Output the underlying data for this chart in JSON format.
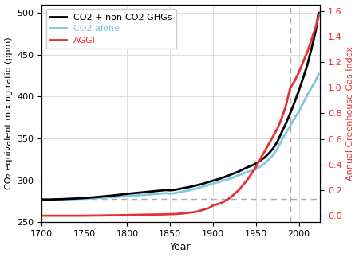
{
  "xlabel": "Year",
  "ylabel_left": "CO₂ equivalent mixing ratio (ppm)",
  "ylabel_right": "Annual Greenhouse Gas Index",
  "xlim": [
    1700,
    2025
  ],
  "ylim_left": [
    250,
    510
  ],
  "ylim_right": [
    -0.05,
    1.65
  ],
  "yticks_left": [
    250,
    300,
    350,
    400,
    450,
    500
  ],
  "yticks_right": [
    0.0,
    0.2,
    0.4,
    0.6,
    0.8,
    1.0,
    1.2,
    1.4,
    1.6
  ],
  "xticks": [
    1700,
    1750,
    1800,
    1850,
    1900,
    1950,
    2000
  ],
  "dashed_hline_y": 278,
  "dashed_vline_x": 1990,
  "dashed_color": "#aaaaaa",
  "background_color": "#ffffff",
  "grid_color": "#d8d8d8",
  "legend_labels": [
    "CO2 + non-CO2 GHGs",
    "CO2 alone",
    "AGGI"
  ],
  "legend_colors": [
    "#000000",
    "#7ec8e3",
    "#e83030"
  ],
  "co2_total_years": [
    1700,
    1705,
    1710,
    1715,
    1720,
    1725,
    1730,
    1735,
    1740,
    1745,
    1750,
    1755,
    1760,
    1765,
    1770,
    1775,
    1780,
    1785,
    1790,
    1795,
    1800,
    1805,
    1810,
    1815,
    1820,
    1825,
    1830,
    1835,
    1840,
    1845,
    1850,
    1855,
    1860,
    1865,
    1870,
    1875,
    1880,
    1885,
    1890,
    1895,
    1900,
    1905,
    1910,
    1915,
    1920,
    1925,
    1930,
    1935,
    1940,
    1945,
    1950,
    1955,
    1960,
    1965,
    1970,
    1975,
    1980,
    1985,
    1990,
    1995,
    2000,
    2005,
    2010,
    2015,
    2020,
    2023
  ],
  "co2_total_values": [
    277.0,
    277.0,
    277.0,
    277.2,
    277.3,
    277.5,
    277.8,
    278.0,
    278.2,
    278.5,
    278.8,
    279.2,
    279.6,
    280.0,
    280.5,
    281.0,
    281.5,
    282.0,
    282.5,
    283.2,
    283.8,
    284.3,
    284.8,
    285.3,
    285.8,
    286.3,
    286.8,
    287.3,
    287.8,
    288.3,
    288.0,
    288.5,
    289.5,
    290.5,
    291.5,
    292.5,
    293.8,
    295.0,
    296.5,
    298.0,
    299.5,
    301.0,
    302.5,
    304.5,
    306.5,
    308.5,
    310.5,
    313.0,
    315.5,
    317.5,
    320.0,
    323.5,
    327.0,
    332.0,
    338.0,
    346.0,
    357.0,
    368.0,
    380.0,
    393.0,
    407.0,
    422.0,
    438.0,
    458.0,
    480.0,
    500.0
  ],
  "co2_alone_years": [
    1700,
    1705,
    1710,
    1715,
    1720,
    1725,
    1730,
    1735,
    1740,
    1745,
    1750,
    1755,
    1760,
    1765,
    1770,
    1775,
    1780,
    1785,
    1790,
    1795,
    1800,
    1805,
    1810,
    1815,
    1820,
    1825,
    1830,
    1835,
    1840,
    1845,
    1850,
    1855,
    1860,
    1865,
    1870,
    1875,
    1880,
    1885,
    1890,
    1895,
    1900,
    1905,
    1910,
    1915,
    1920,
    1925,
    1930,
    1935,
    1940,
    1945,
    1950,
    1955,
    1960,
    1965,
    1970,
    1975,
    1980,
    1985,
    1990,
    1995,
    2000,
    2005,
    2010,
    2015,
    2020,
    2023
  ],
  "co2_alone_values": [
    276.5,
    276.5,
    276.5,
    276.7,
    276.8,
    277.0,
    277.2,
    277.4,
    277.6,
    277.8,
    278.0,
    278.2,
    278.5,
    278.8,
    279.1,
    279.4,
    279.7,
    280.0,
    280.3,
    280.7,
    281.0,
    281.4,
    281.8,
    282.2,
    282.6,
    283.0,
    283.4,
    283.8,
    284.2,
    284.6,
    284.0,
    284.5,
    285.5,
    286.5,
    287.5,
    288.5,
    290.0,
    291.5,
    293.0,
    294.5,
    296.0,
    297.5,
    299.0,
    300.5,
    302.0,
    304.0,
    306.0,
    308.0,
    310.0,
    311.5,
    313.0,
    316.5,
    320.0,
    325.0,
    330.0,
    338.0,
    347.5,
    356.5,
    365.0,
    374.0,
    382.0,
    392.0,
    402.0,
    411.0,
    420.0,
    427.0
  ],
  "aggi_years": [
    1700,
    1750,
    1800,
    1820,
    1840,
    1850,
    1860,
    1870,
    1880,
    1885,
    1890,
    1895,
    1900,
    1905,
    1910,
    1915,
    1920,
    1925,
    1930,
    1935,
    1940,
    1945,
    1950,
    1955,
    1960,
    1965,
    1970,
    1975,
    1980,
    1985,
    1990,
    1995,
    2000,
    2005,
    2010,
    2015,
    2020,
    2023
  ],
  "aggi_values": [
    0.0,
    0.0,
    0.005,
    0.008,
    0.01,
    0.012,
    0.015,
    0.022,
    0.03,
    0.04,
    0.05,
    0.06,
    0.08,
    0.09,
    0.1,
    0.12,
    0.14,
    0.17,
    0.2,
    0.24,
    0.28,
    0.33,
    0.38,
    0.44,
    0.5,
    0.56,
    0.62,
    0.68,
    0.76,
    0.86,
    1.0,
    1.05,
    1.12,
    1.2,
    1.28,
    1.38,
    1.48,
    1.56
  ]
}
